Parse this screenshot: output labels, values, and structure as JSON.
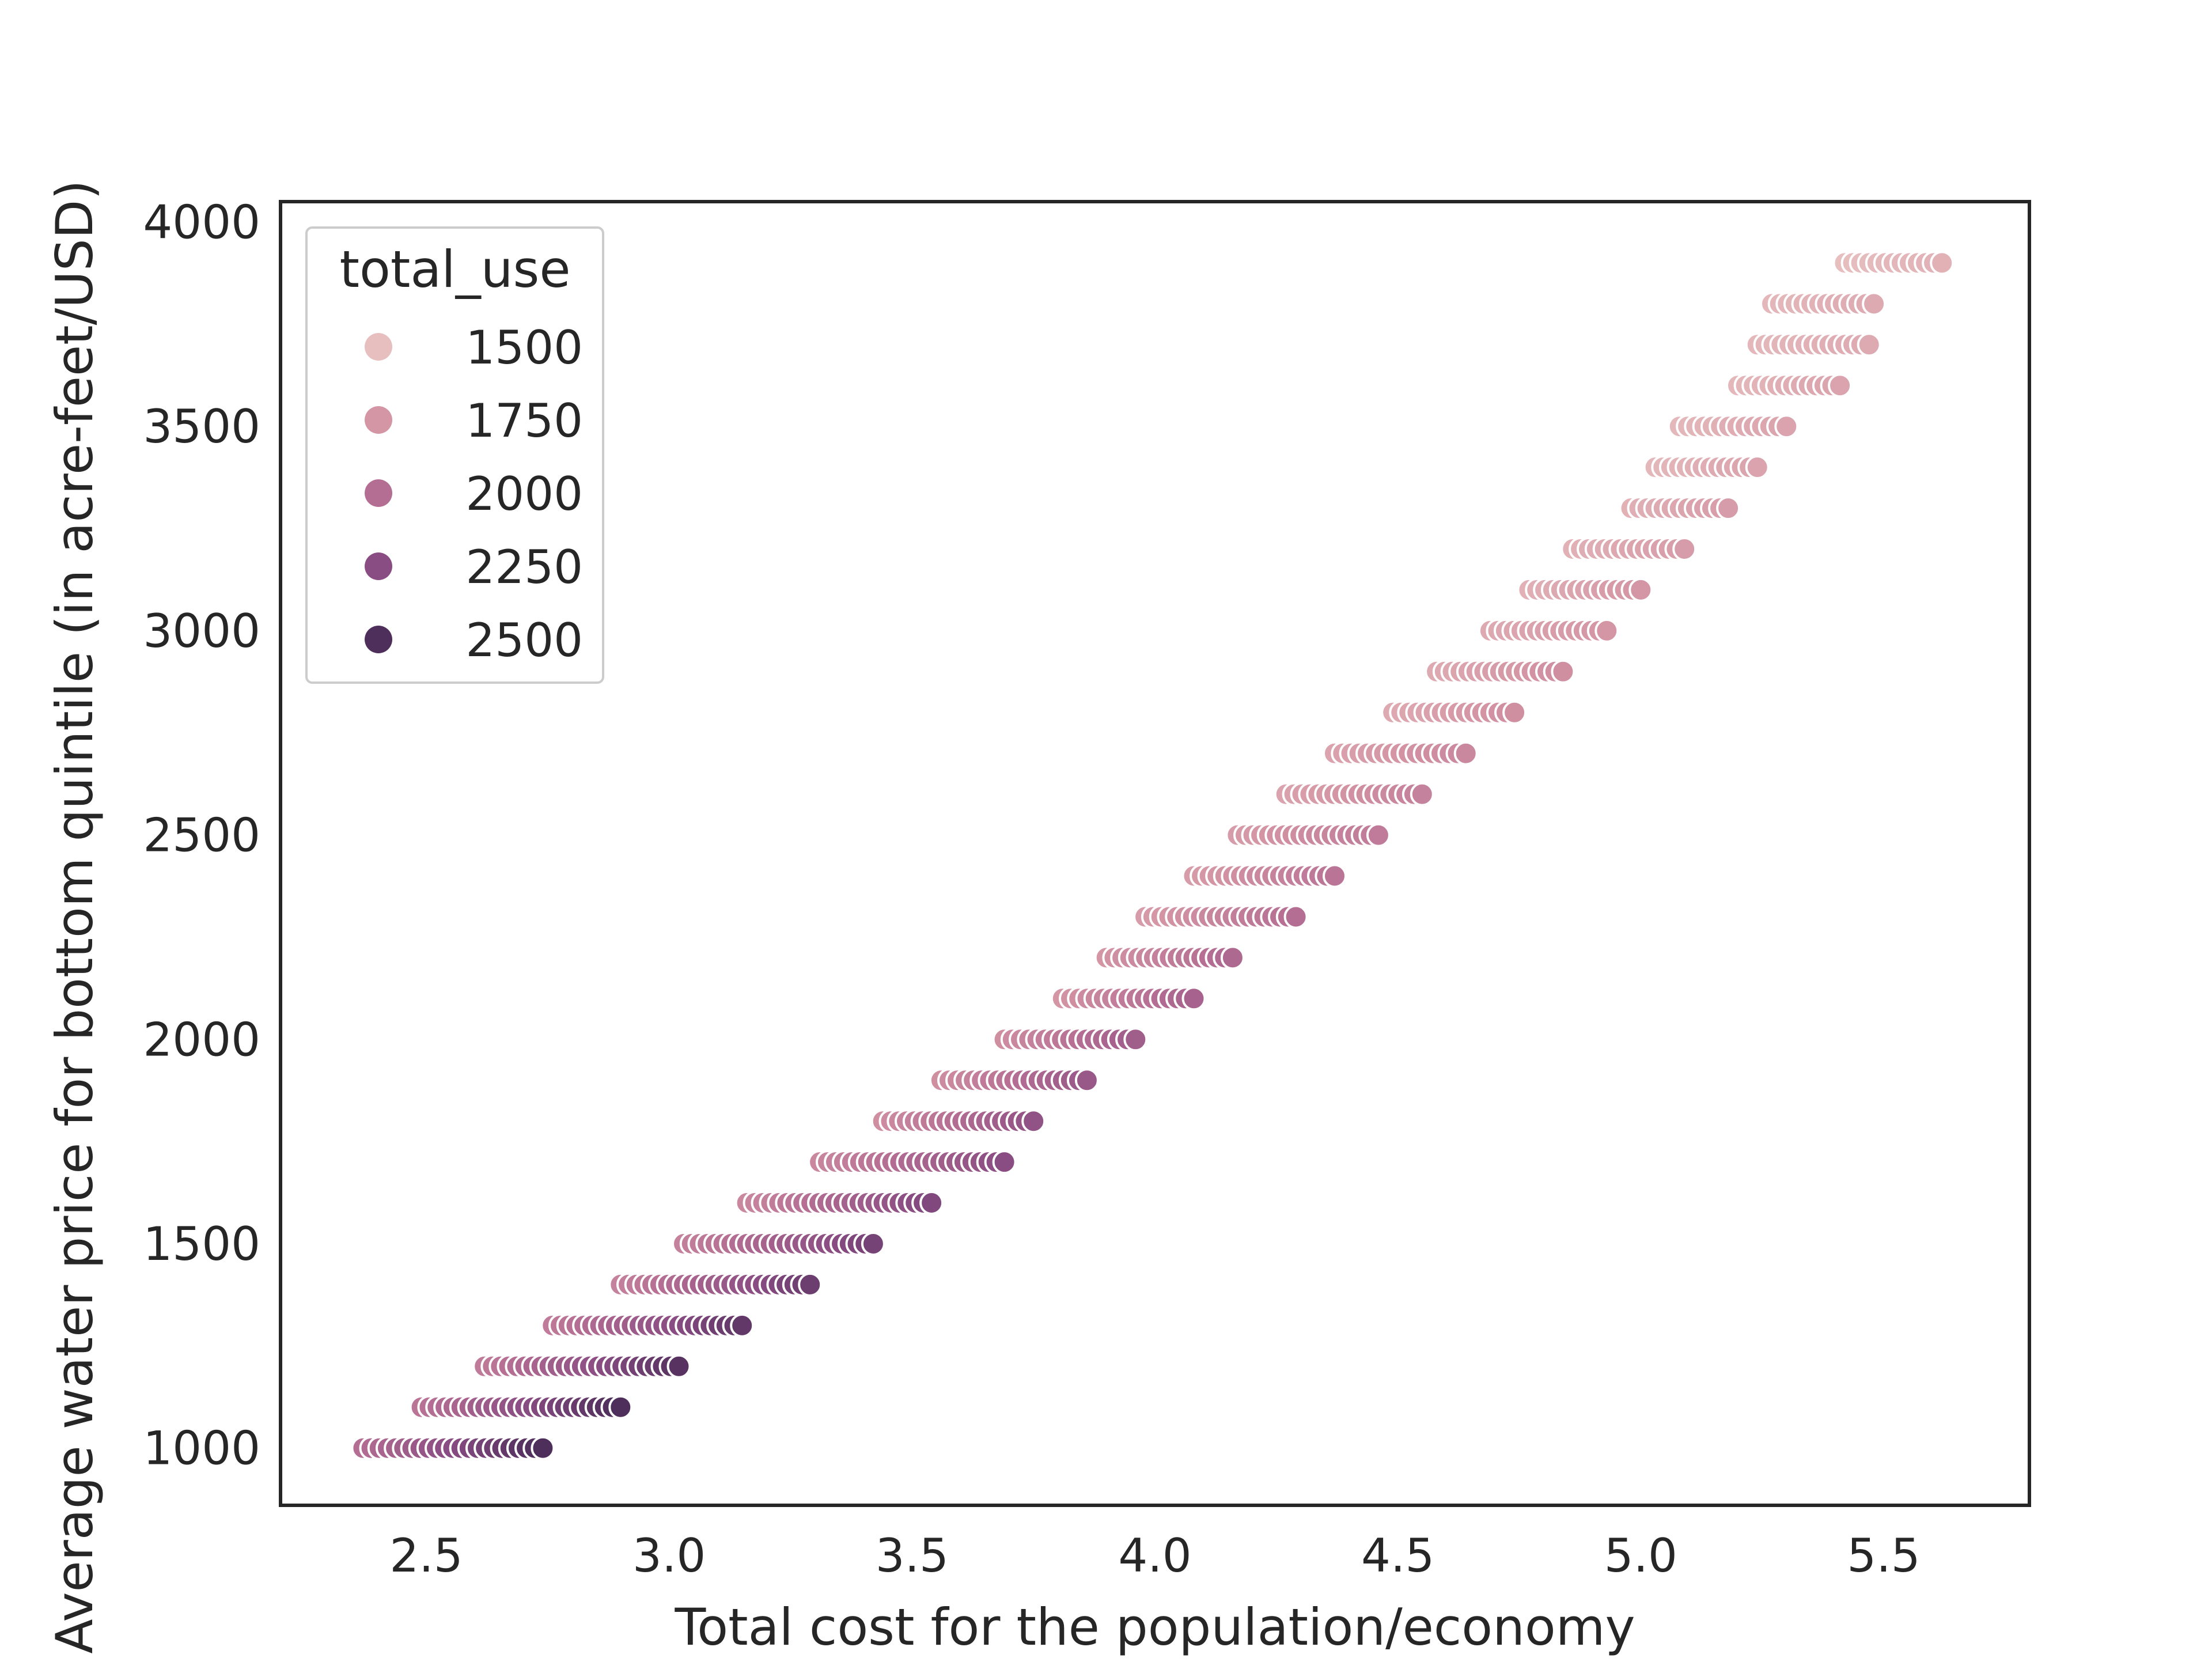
{
  "chart_data": {
    "type": "scatter",
    "title": "",
    "xlabel": "Total cost for the population/economy",
    "ylabel": "Average water price for bottom quintile (in acre-feet/USD)",
    "xlim": [
      2.2,
      5.8
    ],
    "ylim": [
      860,
      4050
    ],
    "xticks": [
      2.5,
      3.0,
      3.5,
      4.0,
      4.5,
      5.0,
      5.5
    ],
    "xtick_labels": [
      "2.5",
      "3.0",
      "3.5",
      "4.0",
      "4.5",
      "5.0",
      "5.5"
    ],
    "yticks": [
      1000,
      1500,
      2000,
      2500,
      3000,
      3500,
      4000
    ],
    "ytick_labels": [
      "1000",
      "1500",
      "2000",
      "2500",
      "3000",
      "3500",
      "4000"
    ],
    "grid": false,
    "legend": {
      "title": "total_use",
      "placement": "upper-left",
      "entries": [
        {
          "label": "1500",
          "color": "#e7bfbf"
        },
        {
          "label": "1750",
          "color": "#d495a4"
        },
        {
          "label": "2000",
          "color": "#b56e93"
        },
        {
          "label": "2250",
          "color": "#8a4d83"
        },
        {
          "label": "2500",
          "color": "#4e2e5b"
        }
      ]
    },
    "hue_range": [
      1400,
      2600
    ],
    "clusters": [
      {
        "y": 1000,
        "x_min": 2.37,
        "x_max": 2.74,
        "hue_min": 2000,
        "hue_max": 2600
      },
      {
        "y": 1100,
        "x_min": 2.49,
        "x_max": 2.9,
        "hue_min": 1950,
        "hue_max": 2600
      },
      {
        "y": 1200,
        "x_min": 2.62,
        "x_max": 3.02,
        "hue_min": 1900,
        "hue_max": 2550
      },
      {
        "y": 1300,
        "x_min": 2.76,
        "x_max": 3.15,
        "hue_min": 1900,
        "hue_max": 2500
      },
      {
        "y": 1400,
        "x_min": 2.9,
        "x_max": 3.29,
        "hue_min": 1850,
        "hue_max": 2450
      },
      {
        "y": 1500,
        "x_min": 3.03,
        "x_max": 3.42,
        "hue_min": 1850,
        "hue_max": 2400
      },
      {
        "y": 1600,
        "x_min": 3.16,
        "x_max": 3.54,
        "hue_min": 1800,
        "hue_max": 2350
      },
      {
        "y": 1700,
        "x_min": 3.31,
        "x_max": 3.69,
        "hue_min": 1800,
        "hue_max": 2300
      },
      {
        "y": 1800,
        "x_min": 3.44,
        "x_max": 3.75,
        "hue_min": 1750,
        "hue_max": 2250
      },
      {
        "y": 1900,
        "x_min": 3.56,
        "x_max": 3.86,
        "hue_min": 1750,
        "hue_max": 2200
      },
      {
        "y": 2000,
        "x_min": 3.69,
        "x_max": 3.96,
        "hue_min": 1750,
        "hue_max": 2150
      },
      {
        "y": 2100,
        "x_min": 3.81,
        "x_max": 4.08,
        "hue_min": 1700,
        "hue_max": 2100
      },
      {
        "y": 2200,
        "x_min": 3.9,
        "x_max": 4.16,
        "hue_min": 1700,
        "hue_max": 2050
      },
      {
        "y": 2300,
        "x_min": 3.98,
        "x_max": 4.29,
        "hue_min": 1650,
        "hue_max": 2000
      },
      {
        "y": 2400,
        "x_min": 4.08,
        "x_max": 4.37,
        "hue_min": 1650,
        "hue_max": 1950
      },
      {
        "y": 2500,
        "x_min": 4.17,
        "x_max": 4.46,
        "hue_min": 1650,
        "hue_max": 1900
      },
      {
        "y": 2600,
        "x_min": 4.27,
        "x_max": 4.55,
        "hue_min": 1600,
        "hue_max": 1850
      },
      {
        "y": 2700,
        "x_min": 4.37,
        "x_max": 4.64,
        "hue_min": 1600,
        "hue_max": 1800
      },
      {
        "y": 2800,
        "x_min": 4.49,
        "x_max": 4.74,
        "hue_min": 1550,
        "hue_max": 1750
      },
      {
        "y": 2900,
        "x_min": 4.58,
        "x_max": 4.84,
        "hue_min": 1550,
        "hue_max": 1750
      },
      {
        "y": 3000,
        "x_min": 4.69,
        "x_max": 4.93,
        "hue_min": 1550,
        "hue_max": 1700
      },
      {
        "y": 3100,
        "x_min": 4.77,
        "x_max": 5.0,
        "hue_min": 1500,
        "hue_max": 1700
      },
      {
        "y": 3200,
        "x_min": 4.86,
        "x_max": 5.09,
        "hue_min": 1500,
        "hue_max": 1650
      },
      {
        "y": 3300,
        "x_min": 4.98,
        "x_max": 5.18,
        "hue_min": 1500,
        "hue_max": 1650
      },
      {
        "y": 3400,
        "x_min": 5.03,
        "x_max": 5.24,
        "hue_min": 1450,
        "hue_max": 1600
      },
      {
        "y": 3500,
        "x_min": 5.08,
        "x_max": 5.3,
        "hue_min": 1450,
        "hue_max": 1600
      },
      {
        "y": 3600,
        "x_min": 5.2,
        "x_max": 5.41,
        "hue_min": 1450,
        "hue_max": 1600
      },
      {
        "y": 3700,
        "x_min": 5.24,
        "x_max": 5.47,
        "hue_min": 1450,
        "hue_max": 1550
      },
      {
        "y": 3800,
        "x_min": 5.27,
        "x_max": 5.48,
        "hue_min": 1450,
        "hue_max": 1550
      },
      {
        "y": 3900,
        "x_min": 5.42,
        "x_max": 5.62,
        "hue_min": 1400,
        "hue_max": 1500
      }
    ]
  }
}
